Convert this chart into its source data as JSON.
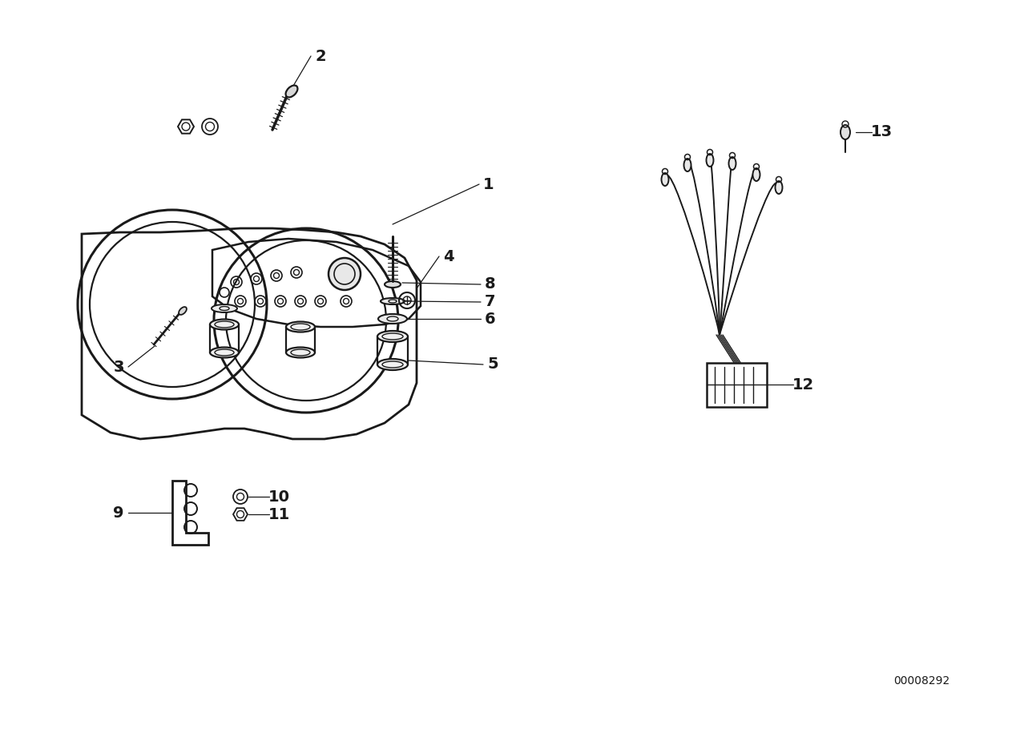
{
  "bg_color": "#ffffff",
  "line_color": "#1a1a1a",
  "text_color": "#1a1a1a",
  "part_number": "00008292",
  "figsize": [
    12.88,
    9.1
  ],
  "dpi": 100
}
